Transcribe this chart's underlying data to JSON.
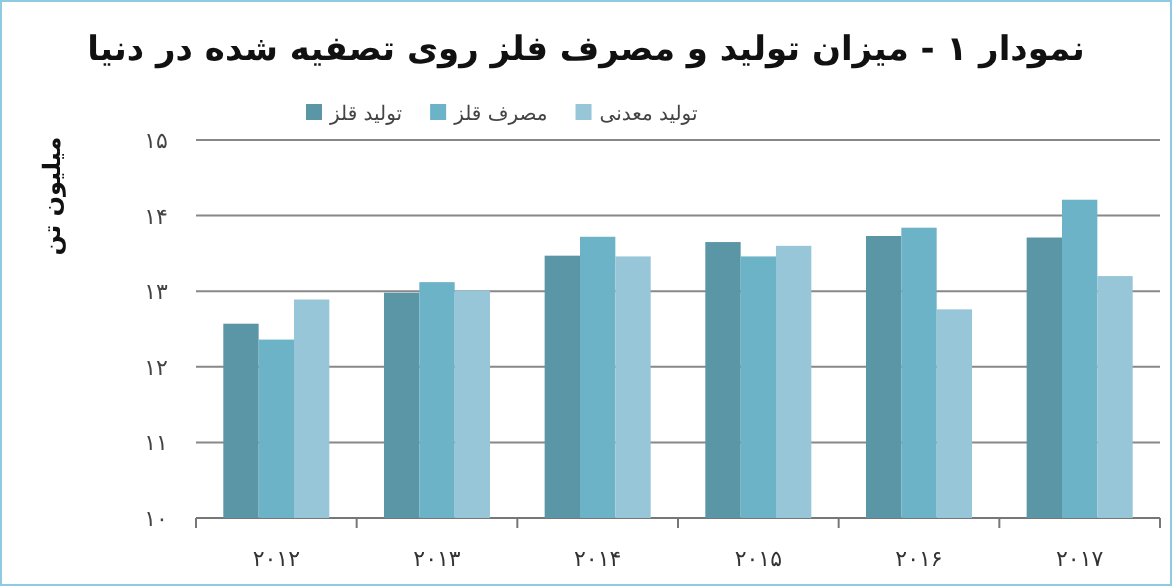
{
  "chart_data": {
    "type": "bar",
    "title": "نمودار ۱ - میزان تولید و مصرف فلز روی تصفیه شده در دنیا",
    "ylabel": "میلیون تن",
    "categories": [
      "۲۰۱۲",
      "۲۰۱۳",
      "۲۰۱۴",
      "۲۰۱۵",
      "۲۰۱۶",
      "۲۰۱۷"
    ],
    "series": [
      {
        "name": "تولید قلز",
        "color": "#5b96a6",
        "values": [
          12.57,
          12.98,
          13.47,
          13.65,
          13.73,
          13.71
        ]
      },
      {
        "name": "مصرف قلز",
        "color": "#6cb3c7",
        "values": [
          12.36,
          13.12,
          13.72,
          13.46,
          13.84,
          14.21
        ]
      },
      {
        "name": "تولید معدنی",
        "color": "#96c6d8",
        "values": [
          12.89,
          13.01,
          13.46,
          13.6,
          12.76,
          13.2
        ]
      }
    ],
    "ylim": [
      10,
      15
    ],
    "yticks": [
      {
        "value": 10,
        "label": "۱۰"
      },
      {
        "value": 11,
        "label": "۱۱"
      },
      {
        "value": 12,
        "label": "۱۲"
      },
      {
        "value": 13,
        "label": "۱۳"
      },
      {
        "value": 14,
        "label": "۱۴"
      },
      {
        "value": 15,
        "label": "۱۵"
      }
    ],
    "grid": "y",
    "legend": "top"
  }
}
